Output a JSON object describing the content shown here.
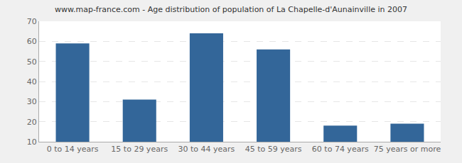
{
  "chart_data": {
    "type": "bar",
    "title": "www.map-france.com - Age distribution of population of La Chapelle-d'Aunainville in 2007",
    "categories": [
      "0 to 14 years",
      "15 to 29 years",
      "30 to 44 years",
      "45 to 59 years",
      "60 to 74 years",
      "75 years or more"
    ],
    "values": [
      59,
      31,
      64,
      56,
      18,
      19
    ],
    "color": "#336699",
    "ylim": [
      10,
      70
    ],
    "yticks": [
      10,
      20,
      30,
      40,
      50,
      60,
      70
    ],
    "grid": true
  }
}
